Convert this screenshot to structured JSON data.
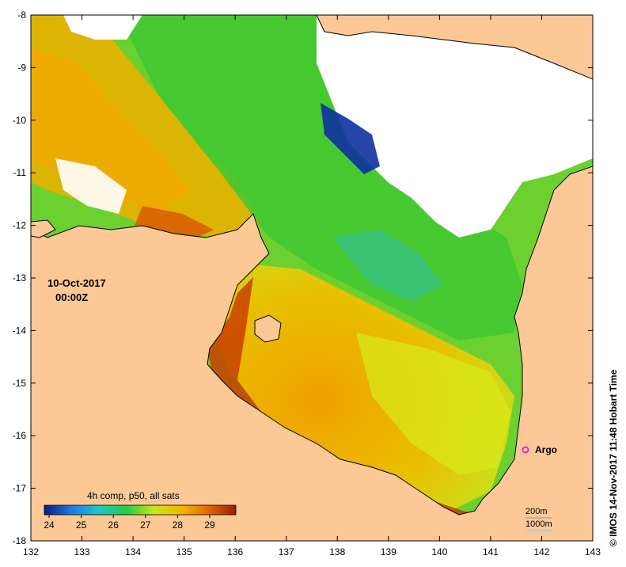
{
  "map": {
    "date_line": "10-Oct-2017",
    "time_line": "00:00Z",
    "colorbar_title": "4h comp, p50, all sats",
    "colorbar_ticks": [
      "24",
      "25",
      "26",
      "27",
      "28",
      "29"
    ],
    "colorbar_colors": [
      "#0a1a8a",
      "#1f7be0",
      "#1ec8c8",
      "#22cc44",
      "#c8e81a",
      "#f0b800",
      "#e06a00",
      "#9a1a00"
    ],
    "lon_labels": [
      "132",
      "133",
      "134",
      "135",
      "136",
      "137",
      "138",
      "139",
      "140",
      "141",
      "142",
      "143"
    ],
    "lat_labels": [
      "-8",
      "-9",
      "-10",
      "-11",
      "-12",
      "-13",
      "-14",
      "-15",
      "-16",
      "-17",
      "-18"
    ],
    "marker_label": "Argo",
    "marker_color": "#e020e0",
    "contour_200_label": "200m",
    "contour_1000_label": "1000m",
    "side_label": "© IMOS 14-Nov-2017 11:48 Hobart Time",
    "land_color": "#fcc896"
  }
}
